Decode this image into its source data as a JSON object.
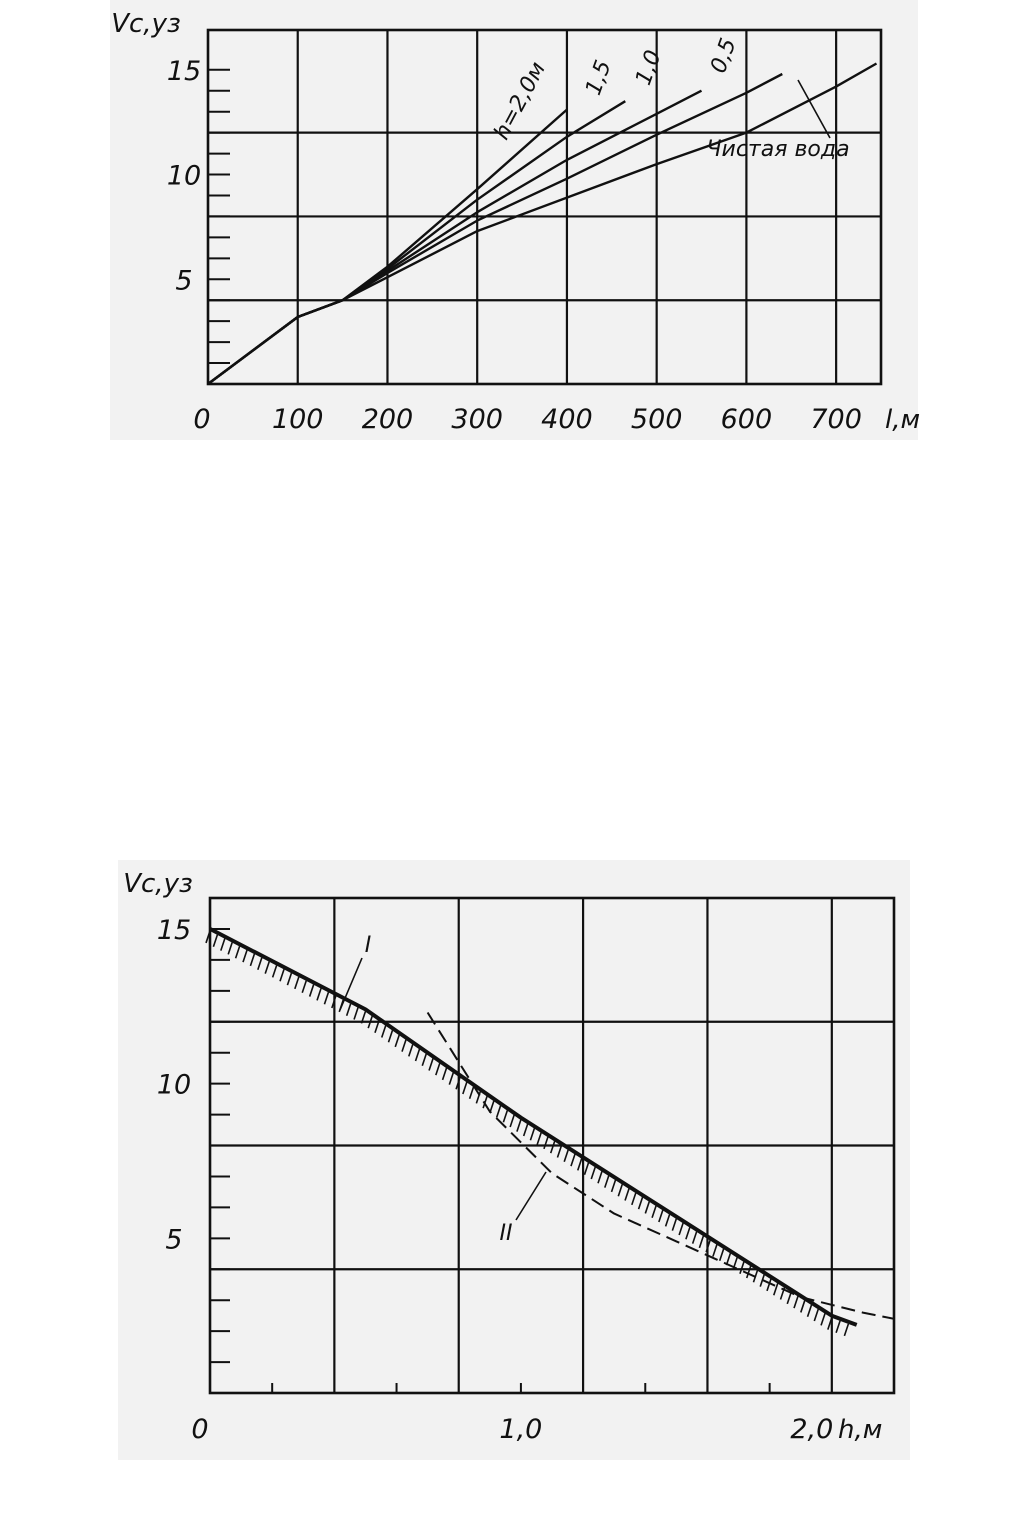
{
  "chart_data": [
    {
      "type": "line",
      "ylabel": "Vc,уз",
      "xlabel": "l,м",
      "x_ticks": [
        0,
        100,
        200,
        300,
        400,
        500,
        600,
        700
      ],
      "x_tick_labels": [
        "0",
        "100",
        "200",
        "300",
        "400",
        "500",
        "600",
        "700"
      ],
      "y_ticks": [
        5,
        10,
        15
      ],
      "y_tick_labels": [
        "5",
        "10",
        "15"
      ],
      "xlim": [
        0,
        750
      ],
      "ylim": [
        0,
        16.9
      ],
      "grid": true,
      "series": [
        {
          "name": "h=2,0м",
          "points": [
            [
              0,
              0
            ],
            [
              100,
              3.2
            ],
            [
              150,
              4.0
            ],
            [
              200,
              5.6
            ],
            [
              300,
              9.3
            ],
            [
              400,
              13.1
            ]
          ]
        },
        {
          "name": "1,5",
          "points": [
            [
              0,
              0
            ],
            [
              100,
              3.2
            ],
            [
              150,
              4.0
            ],
            [
              200,
              5.5
            ],
            [
              300,
              8.8
            ],
            [
              400,
              11.8
            ],
            [
              465,
              13.5
            ]
          ]
        },
        {
          "name": "1,0",
          "points": [
            [
              0,
              0
            ],
            [
              100,
              3.2
            ],
            [
              150,
              4.0
            ],
            [
              200,
              5.4
            ],
            [
              300,
              8.2
            ],
            [
              400,
              10.7
            ],
            [
              500,
              12.9
            ],
            [
              550,
              14.0
            ]
          ]
        },
        {
          "name": "0,5",
          "points": [
            [
              0,
              0
            ],
            [
              100,
              3.2
            ],
            [
              150,
              4.0
            ],
            [
              200,
              5.3
            ],
            [
              300,
              7.8
            ],
            [
              400,
              9.8
            ],
            [
              500,
              11.9
            ],
            [
              600,
              13.9
            ],
            [
              640,
              14.8
            ]
          ]
        },
        {
          "name": "Чистая вода",
          "points": [
            [
              0,
              0
            ],
            [
              100,
              3.2
            ],
            [
              150,
              4.0
            ],
            [
              200,
              5.1
            ],
            [
              300,
              7.3
            ],
            [
              400,
              8.9
            ],
            [
              500,
              10.5
            ],
            [
              600,
              12.0
            ],
            [
              700,
              14.2
            ],
            [
              745,
              15.3
            ]
          ]
        }
      ]
    },
    {
      "type": "line",
      "ylabel": "Vc,уз",
      "xlabel": "h,м",
      "x_ticks": [
        0,
        1.0,
        2.0
      ],
      "x_tick_labels": [
        "0",
        "1,0",
        "2,0"
      ],
      "y_ticks": [
        5,
        10,
        15
      ],
      "y_tick_labels": [
        "5",
        "10",
        "15"
      ],
      "xlim": [
        0,
        2.2
      ],
      "ylim": [
        0,
        16
      ],
      "grid": true,
      "series": [
        {
          "name": "I",
          "style": "solid-hatched",
          "points": [
            [
              0,
              15
            ],
            [
              0.5,
              12.4
            ],
            [
              1.0,
              8.9
            ],
            [
              1.5,
              5.7
            ],
            [
              2.0,
              2.5
            ],
            [
              2.08,
              2.2
            ]
          ]
        },
        {
          "name": "II",
          "style": "dashed",
          "points": [
            [
              0.7,
              12.3
            ],
            [
              0.9,
              9.1
            ],
            [
              1.1,
              7.1
            ],
            [
              1.3,
              5.8
            ],
            [
              1.5,
              4.9
            ],
            [
              1.7,
              4.0
            ],
            [
              1.9,
              3.1
            ],
            [
              2.1,
              2.6
            ],
            [
              2.2,
              2.4
            ]
          ]
        }
      ]
    }
  ]
}
